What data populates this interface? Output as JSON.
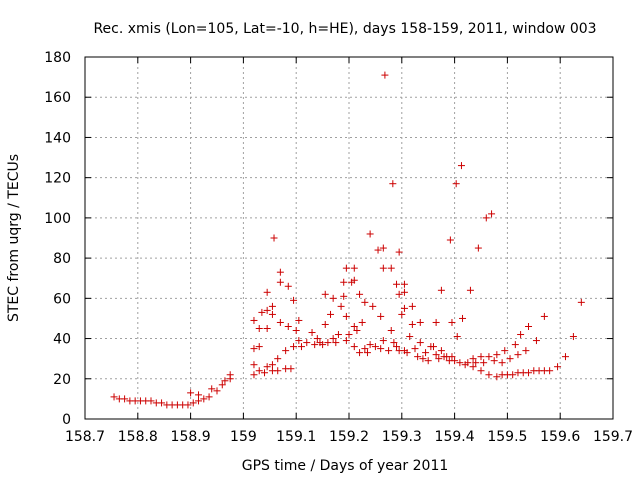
{
  "chart_data": {
    "type": "scatter",
    "title": "Rec. xmis (Lon=105, Lat=-10, h=HE), days 158-159, 2011, window 003",
    "xlabel": "GPS time / Days of year 2011",
    "ylabel": "STEC from uqrg / TECUs",
    "xlim": [
      158.7,
      159.7
    ],
    "ylim": [
      0,
      180
    ],
    "xticks": [
      "158.7",
      "158.8",
      "158.9",
      "159",
      "159.1",
      "159.2",
      "159.3",
      "159.4",
      "159.5",
      "159.6",
      "159.7"
    ],
    "yticks": [
      "0",
      "20",
      "40",
      "60",
      "80",
      "100",
      "120",
      "140",
      "160",
      "180"
    ],
    "grid": true,
    "marker": "+",
    "color": "#cc0000",
    "points": [
      [
        158.755,
        11
      ],
      [
        158.765,
        10
      ],
      [
        158.775,
        10
      ],
      [
        158.785,
        9
      ],
      [
        158.795,
        9
      ],
      [
        158.805,
        9
      ],
      [
        158.815,
        9
      ],
      [
        158.825,
        9
      ],
      [
        158.835,
        8
      ],
      [
        158.845,
        8
      ],
      [
        158.855,
        7
      ],
      [
        158.865,
        7
      ],
      [
        158.875,
        7
      ],
      [
        158.885,
        7
      ],
      [
        158.895,
        7
      ],
      [
        158.9,
        13
      ],
      [
        158.905,
        8
      ],
      [
        158.915,
        9
      ],
      [
        158.915,
        12
      ],
      [
        158.925,
        10
      ],
      [
        158.935,
        11
      ],
      [
        158.94,
        15
      ],
      [
        158.95,
        14
      ],
      [
        158.96,
        17
      ],
      [
        158.965,
        19
      ],
      [
        158.975,
        20
      ],
      [
        158.975,
        22
      ],
      [
        159.02,
        22
      ],
      [
        159.02,
        27
      ],
      [
        159.02,
        35
      ],
      [
        159.02,
        49
      ],
      [
        159.03,
        24
      ],
      [
        159.03,
        36
      ],
      [
        159.03,
        45
      ],
      [
        159.035,
        53
      ],
      [
        159.04,
        23
      ],
      [
        159.045,
        26
      ],
      [
        159.045,
        45
      ],
      [
        159.045,
        54
      ],
      [
        159.045,
        63
      ],
      [
        159.055,
        24
      ],
      [
        159.055,
        27
      ],
      [
        159.055,
        52
      ],
      [
        159.055,
        56
      ],
      [
        159.058,
        90
      ],
      [
        159.065,
        24
      ],
      [
        159.065,
        30
      ],
      [
        159.07,
        48
      ],
      [
        159.07,
        68
      ],
      [
        159.07,
        73
      ],
      [
        159.08,
        25
      ],
      [
        159.08,
        34
      ],
      [
        159.085,
        46
      ],
      [
        159.085,
        66
      ],
      [
        159.09,
        25
      ],
      [
        159.095,
        36
      ],
      [
        159.095,
        59
      ],
      [
        159.1,
        44
      ],
      [
        159.105,
        39
      ],
      [
        159.105,
        49
      ],
      [
        159.11,
        36
      ],
      [
        159.12,
        38
      ],
      [
        159.13,
        43
      ],
      [
        159.135,
        37
      ],
      [
        159.14,
        40
      ],
      [
        159.145,
        38
      ],
      [
        159.15,
        37
      ],
      [
        159.155,
        47
      ],
      [
        159.155,
        62
      ],
      [
        159.16,
        38
      ],
      [
        159.165,
        52
      ],
      [
        159.17,
        40
      ],
      [
        159.17,
        60
      ],
      [
        159.175,
        38
      ],
      [
        159.18,
        42
      ],
      [
        159.185,
        56
      ],
      [
        159.19,
        61
      ],
      [
        159.19,
        68
      ],
      [
        159.195,
        39
      ],
      [
        159.195,
        51
      ],
      [
        159.195,
        75
      ],
      [
        159.2,
        42
      ],
      [
        159.205,
        68
      ],
      [
        159.21,
        36
      ],
      [
        159.21,
        46
      ],
      [
        159.21,
        69
      ],
      [
        159.21,
        75
      ],
      [
        159.215,
        44
      ],
      [
        159.22,
        33
      ],
      [
        159.22,
        62
      ],
      [
        159.225,
        48
      ],
      [
        159.23,
        35
      ],
      [
        159.23,
        58
      ],
      [
        159.235,
        33
      ],
      [
        159.24,
        37
      ],
      [
        159.24,
        92
      ],
      [
        159.245,
        56
      ],
      [
        159.25,
        36
      ],
      [
        159.255,
        84
      ],
      [
        159.26,
        35
      ],
      [
        159.26,
        51
      ],
      [
        159.265,
        39
      ],
      [
        159.265,
        75
      ],
      [
        159.265,
        85
      ],
      [
        159.268,
        171
      ],
      [
        159.275,
        34
      ],
      [
        159.28,
        44
      ],
      [
        159.28,
        75
      ],
      [
        159.283,
        117
      ],
      [
        159.285,
        38
      ],
      [
        159.29,
        36
      ],
      [
        159.29,
        67
      ],
      [
        159.295,
        34
      ],
      [
        159.295,
        62
      ],
      [
        159.295,
        83
      ],
      [
        159.3,
        52
      ],
      [
        159.305,
        34
      ],
      [
        159.305,
        55
      ],
      [
        159.305,
        63
      ],
      [
        159.305,
        67
      ],
      [
        159.31,
        33
      ],
      [
        159.315,
        41
      ],
      [
        159.32,
        47
      ],
      [
        159.32,
        56
      ],
      [
        159.325,
        35
      ],
      [
        159.33,
        31
      ],
      [
        159.335,
        38
      ],
      [
        159.335,
        48
      ],
      [
        159.34,
        30
      ],
      [
        159.345,
        33
      ],
      [
        159.35,
        29
      ],
      [
        159.355,
        36
      ],
      [
        159.36,
        36
      ],
      [
        159.365,
        32
      ],
      [
        159.365,
        48
      ],
      [
        159.37,
        30
      ],
      [
        159.375,
        34
      ],
      [
        159.375,
        64
      ],
      [
        159.38,
        31
      ],
      [
        159.385,
        31
      ],
      [
        159.39,
        29
      ],
      [
        159.392,
        89
      ],
      [
        159.395,
        31
      ],
      [
        159.395,
        48
      ],
      [
        159.4,
        29
      ],
      [
        159.403,
        117
      ],
      [
        159.405,
        41
      ],
      [
        159.41,
        28
      ],
      [
        159.413,
        126
      ],
      [
        159.415,
        50
      ],
      [
        159.42,
        27
      ],
      [
        159.425,
        28
      ],
      [
        159.43,
        64
      ],
      [
        159.435,
        26
      ],
      [
        159.435,
        30
      ],
      [
        159.44,
        28
      ],
      [
        159.445,
        85
      ],
      [
        159.45,
        24
      ],
      [
        159.45,
        31
      ],
      [
        159.455,
        28
      ],
      [
        159.46,
        100
      ],
      [
        159.465,
        22
      ],
      [
        159.465,
        31
      ],
      [
        159.47,
        102
      ],
      [
        159.475,
        29
      ],
      [
        159.48,
        21
      ],
      [
        159.48,
        32
      ],
      [
        159.49,
        22
      ],
      [
        159.49,
        28
      ],
      [
        159.495,
        34
      ],
      [
        159.5,
        22
      ],
      [
        159.505,
        30
      ],
      [
        159.51,
        22
      ],
      [
        159.515,
        37
      ],
      [
        159.52,
        23
      ],
      [
        159.52,
        32
      ],
      [
        159.525,
        42
      ],
      [
        159.53,
        23
      ],
      [
        159.535,
        34
      ],
      [
        159.54,
        23
      ],
      [
        159.54,
        46
      ],
      [
        159.55,
        24
      ],
      [
        159.555,
        39
      ],
      [
        159.56,
        24
      ],
      [
        159.57,
        24
      ],
      [
        159.57,
        51
      ],
      [
        159.58,
        24
      ],
      [
        159.595,
        26
      ],
      [
        159.61,
        31
      ],
      [
        159.625,
        41
      ],
      [
        159.64,
        58
      ]
    ]
  }
}
